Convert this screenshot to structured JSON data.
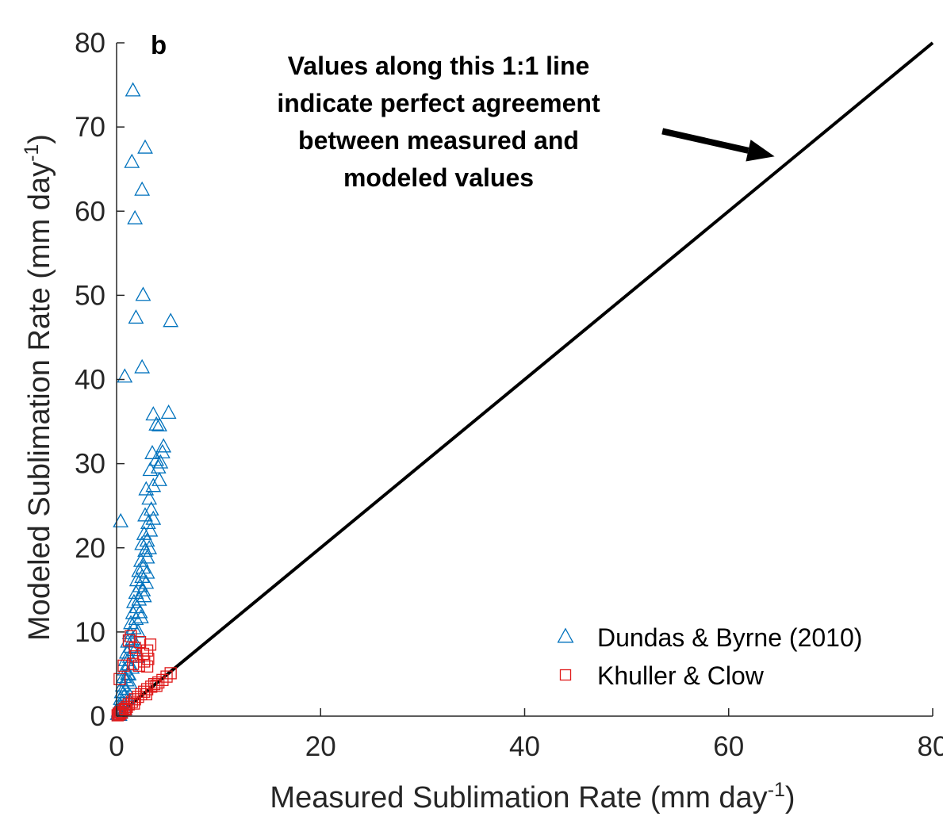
{
  "chart_data": {
    "type": "scatter",
    "panel_label": "b",
    "xlabel": {
      "main": "Measured Sublimation Rate (mm day",
      "sup": "-1",
      "tail": ")"
    },
    "ylabel": {
      "main": "Modeled Sublimation Rate (mm day",
      "sup": "-1",
      "tail": ")"
    },
    "xlim": [
      0,
      80
    ],
    "ylim": [
      0,
      80
    ],
    "xticks": [
      0,
      20,
      40,
      60,
      80
    ],
    "yticks": [
      0,
      10,
      20,
      30,
      40,
      50,
      60,
      70,
      80
    ],
    "xtick_labels": [
      "0",
      "20",
      "40",
      "60",
      "80"
    ],
    "ytick_labels": [
      "0",
      "10",
      "20",
      "30",
      "40",
      "50",
      "60",
      "70",
      "80"
    ],
    "grid": false,
    "legend_position": "bottom-right",
    "reference_line": {
      "x": [
        0,
        80
      ],
      "y": [
        0,
        80
      ],
      "color": "#000000"
    },
    "annotation": {
      "lines": [
        "Values along this 1:1 line",
        "indicate perfect agreement",
        "between measured and",
        "modeled values"
      ],
      "arrow_from": [
        53.5,
        69.5
      ],
      "arrow_to": [
        64.5,
        66.5
      ]
    },
    "series": [
      {
        "name": "Dundas & Byrne (2010)",
        "marker": "triangle",
        "color": "#0072BD",
        "points": [
          [
            1.6,
            74.3
          ],
          [
            1.5,
            65.8
          ],
          [
            2.8,
            67.5
          ],
          [
            2.5,
            62.5
          ],
          [
            1.8,
            59.1
          ],
          [
            2.6,
            50.0
          ],
          [
            1.9,
            47.3
          ],
          [
            5.3,
            46.9
          ],
          [
            0.8,
            40.3
          ],
          [
            2.5,
            41.4
          ],
          [
            0.4,
            23.1
          ],
          [
            5.1,
            36.0
          ],
          [
            3.6,
            35.8
          ],
          [
            3.9,
            34.6
          ],
          [
            4.2,
            34.5
          ],
          [
            4.6,
            32.0
          ],
          [
            4.5,
            31.3
          ],
          [
            3.5,
            31.2
          ],
          [
            3.9,
            30.4
          ],
          [
            4.3,
            30.1
          ],
          [
            4.1,
            29.5
          ],
          [
            3.3,
            29.2
          ],
          [
            4.2,
            28.0
          ],
          [
            3.6,
            27.3
          ],
          [
            2.9,
            26.9
          ],
          [
            3.2,
            25.8
          ],
          [
            3.4,
            24.5
          ],
          [
            3.6,
            23.4
          ],
          [
            2.8,
            23.8
          ],
          [
            3.1,
            22.9
          ],
          [
            3.3,
            22.0
          ],
          [
            2.7,
            21.6
          ],
          [
            3.0,
            20.8
          ],
          [
            2.5,
            20.4
          ],
          [
            2.8,
            19.6
          ],
          [
            3.0,
            18.8
          ],
          [
            2.4,
            18.4
          ],
          [
            2.6,
            17.6
          ],
          [
            2.2,
            17.2
          ],
          [
            2.5,
            16.5
          ],
          [
            2.0,
            16.1
          ],
          [
            2.3,
            15.4
          ],
          [
            2.6,
            14.9
          ],
          [
            1.9,
            14.6
          ],
          [
            2.2,
            13.8
          ],
          [
            1.7,
            13.5
          ],
          [
            2.0,
            12.9
          ],
          [
            2.3,
            12.3
          ],
          [
            1.6,
            12.2
          ],
          [
            1.9,
            11.5
          ],
          [
            1.4,
            11.0
          ],
          [
            1.7,
            10.4
          ],
          [
            2.1,
            10.0
          ],
          [
            1.3,
            9.8
          ],
          [
            1.6,
            9.1
          ],
          [
            1.1,
            8.8
          ],
          [
            1.4,
            8.2
          ],
          [
            1.8,
            7.8
          ],
          [
            1.0,
            7.5
          ],
          [
            1.3,
            7.0
          ],
          [
            0.9,
            6.6
          ],
          [
            1.2,
            6.1
          ],
          [
            1.5,
            5.7
          ],
          [
            0.8,
            5.5
          ],
          [
            1.1,
            5.0
          ],
          [
            0.7,
            4.6
          ],
          [
            1.0,
            4.2
          ],
          [
            1.3,
            3.9
          ],
          [
            0.6,
            3.6
          ],
          [
            0.9,
            3.2
          ],
          [
            0.5,
            2.8
          ],
          [
            0.8,
            2.4
          ],
          [
            1.1,
            2.1
          ],
          [
            0.4,
            2.0
          ],
          [
            0.6,
            1.6
          ],
          [
            0.3,
            1.3
          ],
          [
            0.5,
            1.0
          ],
          [
            0.8,
            0.8
          ],
          [
            0.2,
            0.6
          ],
          [
            0.4,
            0.4
          ],
          [
            0.1,
            0.2
          ],
          [
            0.3,
            0.1
          ],
          [
            1.5,
            8.9
          ],
          [
            2.0,
            7.0
          ],
          [
            1.2,
            4.9
          ],
          [
            2.4,
            11.7
          ],
          [
            2.7,
            14.2
          ],
          [
            3.0,
            17.0
          ],
          [
            3.2,
            19.9
          ],
          [
            2.9,
            15.8
          ]
        ]
      },
      {
        "name": "Khuller & Clow",
        "marker": "square",
        "color": "#E01A1A",
        "points": [
          [
            1.4,
            9.5
          ],
          [
            1.2,
            9.0
          ],
          [
            2.3,
            8.8
          ],
          [
            3.3,
            8.5
          ],
          [
            1.8,
            8.1
          ],
          [
            3.0,
            7.8
          ],
          [
            2.6,
            7.4
          ],
          [
            1.9,
            7.1
          ],
          [
            3.1,
            6.8
          ],
          [
            2.7,
            6.5
          ],
          [
            1.6,
            6.2
          ],
          [
            0.7,
            6.0
          ],
          [
            2.2,
            6.0
          ],
          [
            3.0,
            5.9
          ],
          [
            0.3,
            4.4
          ],
          [
            5.3,
            5.1
          ],
          [
            4.9,
            4.7
          ],
          [
            4.5,
            4.3
          ],
          [
            4.1,
            4.0
          ],
          [
            3.7,
            3.8
          ],
          [
            3.4,
            3.5
          ],
          [
            3.0,
            3.2
          ],
          [
            2.7,
            2.9
          ],
          [
            2.4,
            2.6
          ],
          [
            2.1,
            2.3
          ],
          [
            1.8,
            2.0
          ],
          [
            1.5,
            1.7
          ],
          [
            1.2,
            1.4
          ],
          [
            1.0,
            1.1
          ],
          [
            0.8,
            0.9
          ],
          [
            0.6,
            0.7
          ],
          [
            0.4,
            0.5
          ],
          [
            0.2,
            0.3
          ],
          [
            0.1,
            0.1
          ],
          [
            3.9,
            3.6
          ],
          [
            2.9,
            2.6
          ],
          [
            1.7,
            1.5
          ],
          [
            0.9,
            0.8
          ],
          [
            0.5,
            0.4
          ],
          [
            0.3,
            0.2
          ]
        ]
      }
    ]
  }
}
